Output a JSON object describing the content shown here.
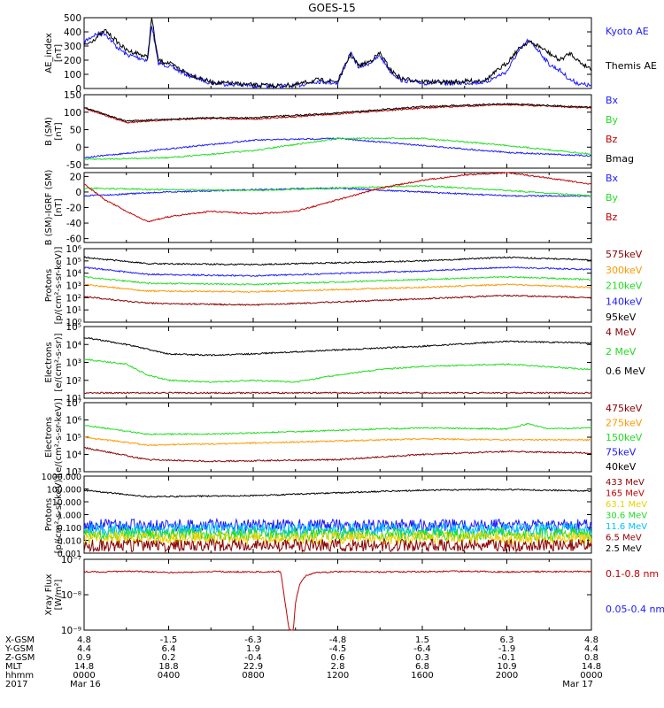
{
  "title": "GOES-15",
  "colors": {
    "blue": "#1a1aff",
    "black": "#000000",
    "red": "#c00000",
    "green": "#22dd22",
    "orange": "#ff9900",
    "darkred": "#8b0000",
    "cyan": "#00bfff",
    "yellow": "#e6d200",
    "lime": "#7cfc00"
  },
  "chart_data": [
    {
      "type": "line",
      "id": "ae",
      "ylabel": "AE_index\n[nT]",
      "yscale": "linear",
      "ylim": [
        0,
        500
      ],
      "yticks": [
        0,
        100,
        200,
        300,
        400,
        500
      ],
      "series": [
        {
          "name": "Kyoto AE",
          "color": "#1a1aff",
          "x": [
            0,
            0.5,
            1,
            1.5,
            2,
            2.5,
            3,
            3.2,
            3.5,
            4,
            5,
            6,
            8,
            9,
            10,
            11,
            12,
            12.6,
            13,
            13.5,
            14,
            14.5,
            15,
            16,
            17,
            18,
            19,
            20,
            20.5,
            21,
            21.5,
            22,
            22.5,
            23,
            23.5,
            24
          ],
          "y": [
            330,
            380,
            390,
            300,
            240,
            220,
            200,
            450,
            180,
            160,
            90,
            40,
            20,
            15,
            20,
            50,
            40,
            250,
            150,
            180,
            230,
            120,
            60,
            40,
            35,
            40,
            45,
            120,
            250,
            340,
            270,
            170,
            130,
            60,
            30,
            20
          ]
        },
        {
          "name": "Themis AE",
          "color": "#000000",
          "x": [
            0,
            0.5,
            1,
            1.5,
            2,
            2.5,
            3,
            3.2,
            3.5,
            4,
            5,
            6,
            8,
            9,
            10,
            11,
            12,
            12.6,
            13,
            13.5,
            14,
            14.5,
            15,
            16,
            17,
            18,
            19,
            20,
            20.5,
            21,
            21.5,
            22,
            22.5,
            23,
            23.5,
            24
          ],
          "y": [
            300,
            350,
            410,
            340,
            270,
            250,
            220,
            500,
            200,
            180,
            100,
            45,
            25,
            20,
            25,
            60,
            50,
            240,
            160,
            190,
            250,
            130,
            70,
            50,
            45,
            50,
            60,
            180,
            270,
            330,
            300,
            250,
            200,
            250,
            180,
            140
          ]
        }
      ]
    },
    {
      "type": "line",
      "id": "bsm",
      "ylabel": "B (SM)\n[nT]",
      "yscale": "linear",
      "ylim": [
        -60,
        150
      ],
      "yticks": [
        -50,
        0,
        50,
        100,
        150
      ],
      "labels": [
        "Bx",
        "By",
        "Bz",
        "Bmag"
      ],
      "series": [
        {
          "name": "Bx",
          "color": "#1a1aff",
          "x": [
            0,
            4,
            8,
            12,
            16,
            20,
            24
          ],
          "y": [
            -30,
            -5,
            20,
            25,
            5,
            -15,
            -25
          ]
        },
        {
          "name": "By",
          "color": "#22dd22",
          "x": [
            0,
            4,
            8,
            12,
            16,
            20,
            24
          ],
          "y": [
            -35,
            -30,
            -10,
            25,
            25,
            5,
            -20
          ]
        },
        {
          "name": "Bz",
          "color": "#c00000",
          "x": [
            0,
            2,
            4,
            6,
            8,
            12,
            16,
            20,
            24
          ],
          "y": [
            112,
            70,
            78,
            82,
            80,
            95,
            112,
            122,
            112
          ]
        },
        {
          "name": "Bmag",
          "color": "#000000",
          "x": [
            0,
            2,
            4,
            6,
            8,
            12,
            16,
            20,
            24
          ],
          "y": [
            114,
            74,
            80,
            84,
            84,
            98,
            116,
            124,
            114
          ]
        }
      ]
    },
    {
      "type": "line",
      "id": "bigrf",
      "ylabel": "B (SM)-IGRF (SM)\n[nT]",
      "yscale": "linear",
      "ylim": [
        -65,
        25
      ],
      "yticks": [
        -60,
        -40,
        -20,
        0,
        20
      ],
      "series": [
        {
          "name": "Bx",
          "color": "#1a1aff",
          "x": [
            0,
            4,
            8,
            12,
            16,
            20,
            24
          ],
          "y": [
            -5,
            0,
            3,
            5,
            0,
            -5,
            -5
          ]
        },
        {
          "name": "By",
          "color": "#22dd22",
          "x": [
            0,
            4,
            8,
            12,
            16,
            20,
            24
          ],
          "y": [
            5,
            3,
            2,
            5,
            8,
            2,
            -5
          ]
        },
        {
          "name": "Bz",
          "color": "#c00000",
          "x": [
            0,
            1,
            2,
            3,
            4,
            5,
            6,
            8,
            10,
            12,
            14,
            16,
            18,
            20,
            22,
            24
          ],
          "y": [
            10,
            -10,
            -25,
            -38,
            -32,
            -28,
            -25,
            -28,
            -25,
            -10,
            5,
            15,
            22,
            25,
            18,
            10
          ]
        }
      ]
    },
    {
      "type": "line",
      "id": "protons",
      "ylabel": "Protons\n[p/(cm²-s-sr-keV)]",
      "yscale": "log",
      "ylim": [
        1,
        1000000
      ],
      "ytick_labels": [
        "10⁰",
        "10¹",
        "10²",
        "10³",
        "10⁴",
        "10⁵",
        "10⁶"
      ],
      "series": [
        {
          "name": "575keV",
          "color": "#000000",
          "x": [
            0,
            3,
            8,
            16,
            20,
            24
          ],
          "y": [
            200000,
            60000,
            50000,
            100000,
            200000,
            120000
          ]
        },
        {
          "name": "300keV",
          "color": "#1a1aff",
          "x": [
            0,
            3,
            8,
            16,
            20,
            24
          ],
          "y": [
            30000,
            8000,
            6000,
            15000,
            30000,
            20000
          ]
        },
        {
          "name": "210keV",
          "color": "#22dd22",
          "x": [
            0,
            3,
            8,
            16,
            20,
            24
          ],
          "y": [
            5000,
            1500,
            1200,
            3000,
            5000,
            3000
          ]
        },
        {
          "name": "140keV",
          "color": "#ff9900",
          "x": [
            0,
            3,
            8,
            16,
            20,
            24
          ],
          "y": [
            1200,
            350,
            300,
            700,
            1200,
            700
          ]
        },
        {
          "name": "95keV",
          "color": "#8b0000",
          "x": [
            0,
            3,
            8,
            16,
            20,
            24
          ],
          "y": [
            120,
            35,
            25,
            80,
            150,
            100
          ]
        }
      ],
      "labels": [
        {
          "text": "575keV",
          "color": "#8b0000"
        },
        {
          "text": "300keV",
          "color": "#ff9900"
        },
        {
          "text": "210keV",
          "color": "#22dd22"
        },
        {
          "text": "140keV",
          "color": "#1a1aff"
        },
        {
          "text": "95keV",
          "color": "#000000"
        }
      ]
    },
    {
      "type": "line",
      "id": "electrons1",
      "ylabel": "Electrons\n[e/(cm²-s-sr)]",
      "yscale": "log",
      "ylim": [
        10,
        100000
      ],
      "ytick_labels": [
        "10¹",
        "10²",
        "10³",
        "10⁴",
        "10⁵"
      ],
      "series": [
        {
          "name": "0.6 MeV",
          "color": "#000000",
          "x": [
            0,
            2,
            4,
            6,
            8,
            12,
            16,
            20,
            24
          ],
          "y": [
            25000,
            10000,
            3000,
            2500,
            3000,
            5000,
            8000,
            15000,
            12000
          ]
        },
        {
          "name": "2 MeV",
          "color": "#22dd22",
          "x": [
            0,
            2,
            3,
            4,
            6,
            8,
            10,
            12,
            14,
            16,
            20,
            24
          ],
          "y": [
            1500,
            800,
            200,
            100,
            80,
            100,
            80,
            200,
            400,
            600,
            800,
            400
          ]
        },
        {
          "name": "4 MeV",
          "color": "#8b0000",
          "x": [
            0,
            24
          ],
          "y": [
            20,
            20
          ]
        }
      ],
      "labels": [
        {
          "text": "4 MeV",
          "color": "#8b0000"
        },
        {
          "text": "2 MeV",
          "color": "#22dd22"
        },
        {
          "text": "0.6 MeV",
          "color": "#000000"
        }
      ]
    },
    {
      "type": "line",
      "id": "electrons2",
      "ylabel": "Electrons\n[e/(cm²-s-sr-keV)]",
      "yscale": "log",
      "ylim": [
        1000,
        10000000
      ],
      "ytick_labels": [
        "10³",
        "10⁴",
        "10⁵",
        "10⁶",
        "10⁷"
      ],
      "series": [
        {
          "name": "275keV",
          "color": "#22dd22",
          "x": [
            0,
            3,
            6,
            12,
            16,
            20,
            21,
            22,
            24
          ],
          "y": [
            500000,
            150000,
            150000,
            250000,
            350000,
            300000,
            600000,
            300000,
            350000
          ]
        },
        {
          "name": "150keV",
          "color": "#ff9900",
          "x": [
            0,
            3,
            6,
            12,
            16,
            20,
            24
          ],
          "y": [
            100000,
            35000,
            40000,
            60000,
            80000,
            70000,
            70000
          ]
        },
        {
          "name": "75keV",
          "color": "#8b0000",
          "x": [
            0,
            3,
            6,
            12,
            16,
            20,
            24
          ],
          "y": [
            25000,
            5000,
            4000,
            5000,
            10000,
            15000,
            12000
          ]
        }
      ],
      "labels": [
        {
          "text": "475keV",
          "color": "#8b0000"
        },
        {
          "text": "275keV",
          "color": "#ff9900"
        },
        {
          "text": "150keV",
          "color": "#22dd22"
        },
        {
          "text": "75keV",
          "color": "#1a1aff"
        },
        {
          "text": "40keV",
          "color": "#000000"
        }
      ]
    },
    {
      "type": "line",
      "id": "protons2",
      "ylabel": "Protons\n[p/(cm²-s-sr-keV)]",
      "yscale": "log",
      "ylim": [
        0.001,
        1000
      ],
      "ytick_labels": [
        "0.001",
        "0.010",
        "0.100",
        "1.000",
        "10.000",
        "100.000",
        "1000.000"
      ],
      "series": [
        {
          "name": "2.5 MeV",
          "color": "#000000",
          "x": [
            0,
            3,
            8,
            12,
            16,
            20,
            24
          ],
          "y": [
            80,
            25,
            30,
            50,
            80,
            90,
            70
          ]
        },
        {
          "name": "6.5 MeV",
          "color": "#1a1aff",
          "x": [
            0,
            24
          ],
          "y": [
            0.15,
            0.15
          ]
        },
        {
          "name": "11.6 MeV",
          "color": "#00bfff",
          "x": [
            0,
            24
          ],
          "y": [
            0.07,
            0.07
          ]
        },
        {
          "name": "30.6 MeV",
          "color": "#22dd22",
          "x": [
            0,
            24
          ],
          "y": [
            0.03,
            0.03
          ]
        },
        {
          "name": "63.1 MeV",
          "color": "#e6d200",
          "x": [
            0,
            24
          ],
          "y": [
            0.015,
            0.015
          ]
        },
        {
          "name": "165 MeV",
          "color": "#8b0000",
          "x": [
            0,
            24
          ],
          "y": [
            0.004,
            0.004
          ]
        }
      ],
      "labels": [
        {
          "text": "433 MeV",
          "color": "#8b0000"
        },
        {
          "text": "165 MeV",
          "color": "#c00000"
        },
        {
          "text": "63.1 MeV",
          "color": "#e6d200"
        },
        {
          "text": "30.6 MeV",
          "color": "#22dd22"
        },
        {
          "text": "11.6 MeV",
          "color": "#00bfff"
        },
        {
          "text": "6.5 MeV",
          "color": "#8b0000"
        },
        {
          "text": "2.5 MeV",
          "color": "#000000"
        }
      ]
    },
    {
      "type": "line",
      "id": "xray",
      "ylabel": "Xray Flux\n[W/m²]",
      "yscale": "log",
      "ylim": [
        1e-09,
        1e-07
      ],
      "ytick_labels": [
        "10⁻⁹",
        "10⁻⁸",
        "10⁻⁷"
      ],
      "series": [
        {
          "name": "0.1-0.8 nm",
          "color": "#c00000",
          "x": [
            0,
            1,
            2,
            3,
            4,
            6,
            8,
            9.3,
            9.7,
            9.9,
            10,
            10.2,
            10.5,
            11,
            12,
            14,
            16,
            18,
            20,
            22,
            24
          ],
          "y": [
            4.5e-08,
            4.4e-08,
            4.6e-08,
            4.5e-08,
            4.2e-08,
            4.5e-08,
            4.4e-08,
            4.5e-08,
            1e-09,
            1e-09,
            6e-09,
            2e-08,
            3.5e-08,
            4.2e-08,
            4.5e-08,
            4.4e-08,
            4.5e-08,
            4.6e-08,
            4.4e-08,
            4.5e-08,
            4.5e-08
          ]
        }
      ],
      "labels": [
        {
          "text": "0.1-0.8 nm",
          "color": "#c00000"
        },
        {
          "text": "0.05-0.4 nm",
          "color": "#1a1aff"
        }
      ]
    }
  ],
  "bottom_axis": {
    "rows": [
      {
        "label": "X-GSM",
        "values": [
          "4.8",
          "-1.5",
          "-6.3",
          "-4.8",
          "1.5",
          "6.3",
          "4.8"
        ]
      },
      {
        "label": "Y-GSM",
        "values": [
          "4.4",
          "6.4",
          "1.9",
          "-4.5",
          "-6.4",
          "-1.9",
          "4.4"
        ]
      },
      {
        "label": "Z-GSM",
        "values": [
          "0.9",
          "0.2",
          "-0.4",
          "0.6",
          "0.3",
          "-0.1",
          "0.8"
        ]
      },
      {
        "label": "MLT",
        "values": [
          "14.8",
          "18.8",
          "22.9",
          "2.8",
          "6.8",
          "10.9",
          "14.8"
        ]
      },
      {
        "label": "hhmm",
        "values": [
          "0000",
          "0400",
          "0800",
          "1200",
          "1600",
          "2000",
          "0000"
        ]
      },
      {
        "label": "2017",
        "values": [
          "Mar 16",
          "",
          "",
          "",
          "",
          "",
          "Mar 17"
        ]
      }
    ]
  }
}
